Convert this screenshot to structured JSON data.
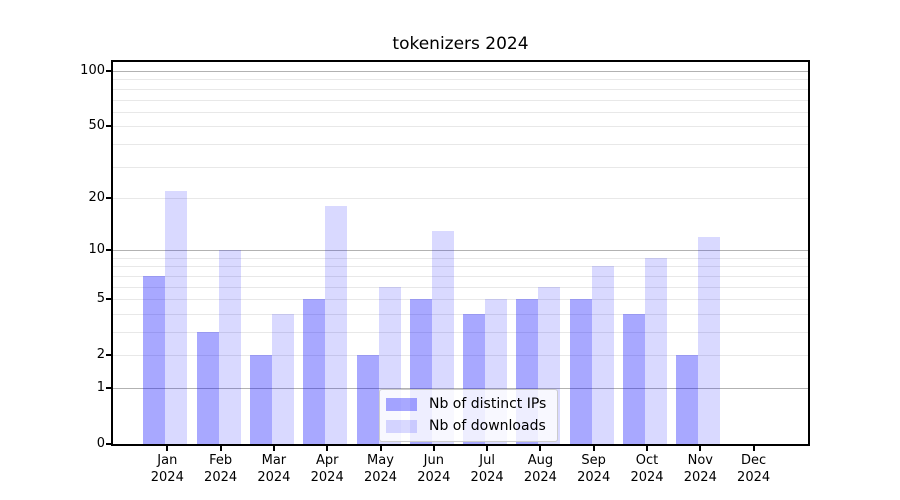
{
  "chart_data": {
    "type": "bar",
    "title": "tokenizers 2024",
    "xlabel": "",
    "ylabel": "",
    "categories": [
      "Jan 2024",
      "Feb 2024",
      "Mar 2024",
      "Apr 2024",
      "May 2024",
      "Jun 2024",
      "Jul 2024",
      "Aug 2024",
      "Sep 2024",
      "Oct 2024",
      "Nov 2024",
      "Dec 2024"
    ],
    "series": [
      {
        "name": "Nb of distinct IPs",
        "color": "rgba(0,0,255,0.34)",
        "values": [
          7,
          3,
          2,
          5,
          2,
          5,
          4,
          5,
          5,
          4,
          2,
          0
        ]
      },
      {
        "name": "Nb of downloads",
        "color": "rgba(0,0,255,0.15)",
        "values": [
          22,
          10,
          4,
          18,
          6,
          13,
          5,
          6,
          8,
          9,
          12,
          0
        ]
      }
    ],
    "yaxis": {
      "scale": "log1p",
      "ylim": [
        0,
        112
      ],
      "tick_labels": [
        "0",
        "1",
        "2",
        "5",
        "10",
        "20",
        "50",
        "100"
      ],
      "tick_values": [
        0,
        1,
        2,
        5,
        10,
        20,
        50,
        100
      ],
      "major_gridlines": [
        1,
        10,
        100
      ],
      "minor_gridlines": [
        2,
        3,
        4,
        5,
        6,
        7,
        8,
        9,
        20,
        30,
        40,
        50,
        60,
        70,
        80,
        90
      ],
      "grid": "on"
    },
    "legend_position": "lower center",
    "colors": {
      "bar_distinct_ips": "rgba(0,0,255,0.34)",
      "bar_downloads": "rgba(0,0,255,0.15)",
      "gridline_major": "#b2b2b2",
      "gridline_minor": "#e8e8e8",
      "axis": "#000000",
      "text": "#000000",
      "legend_border": "#cccccc"
    }
  }
}
